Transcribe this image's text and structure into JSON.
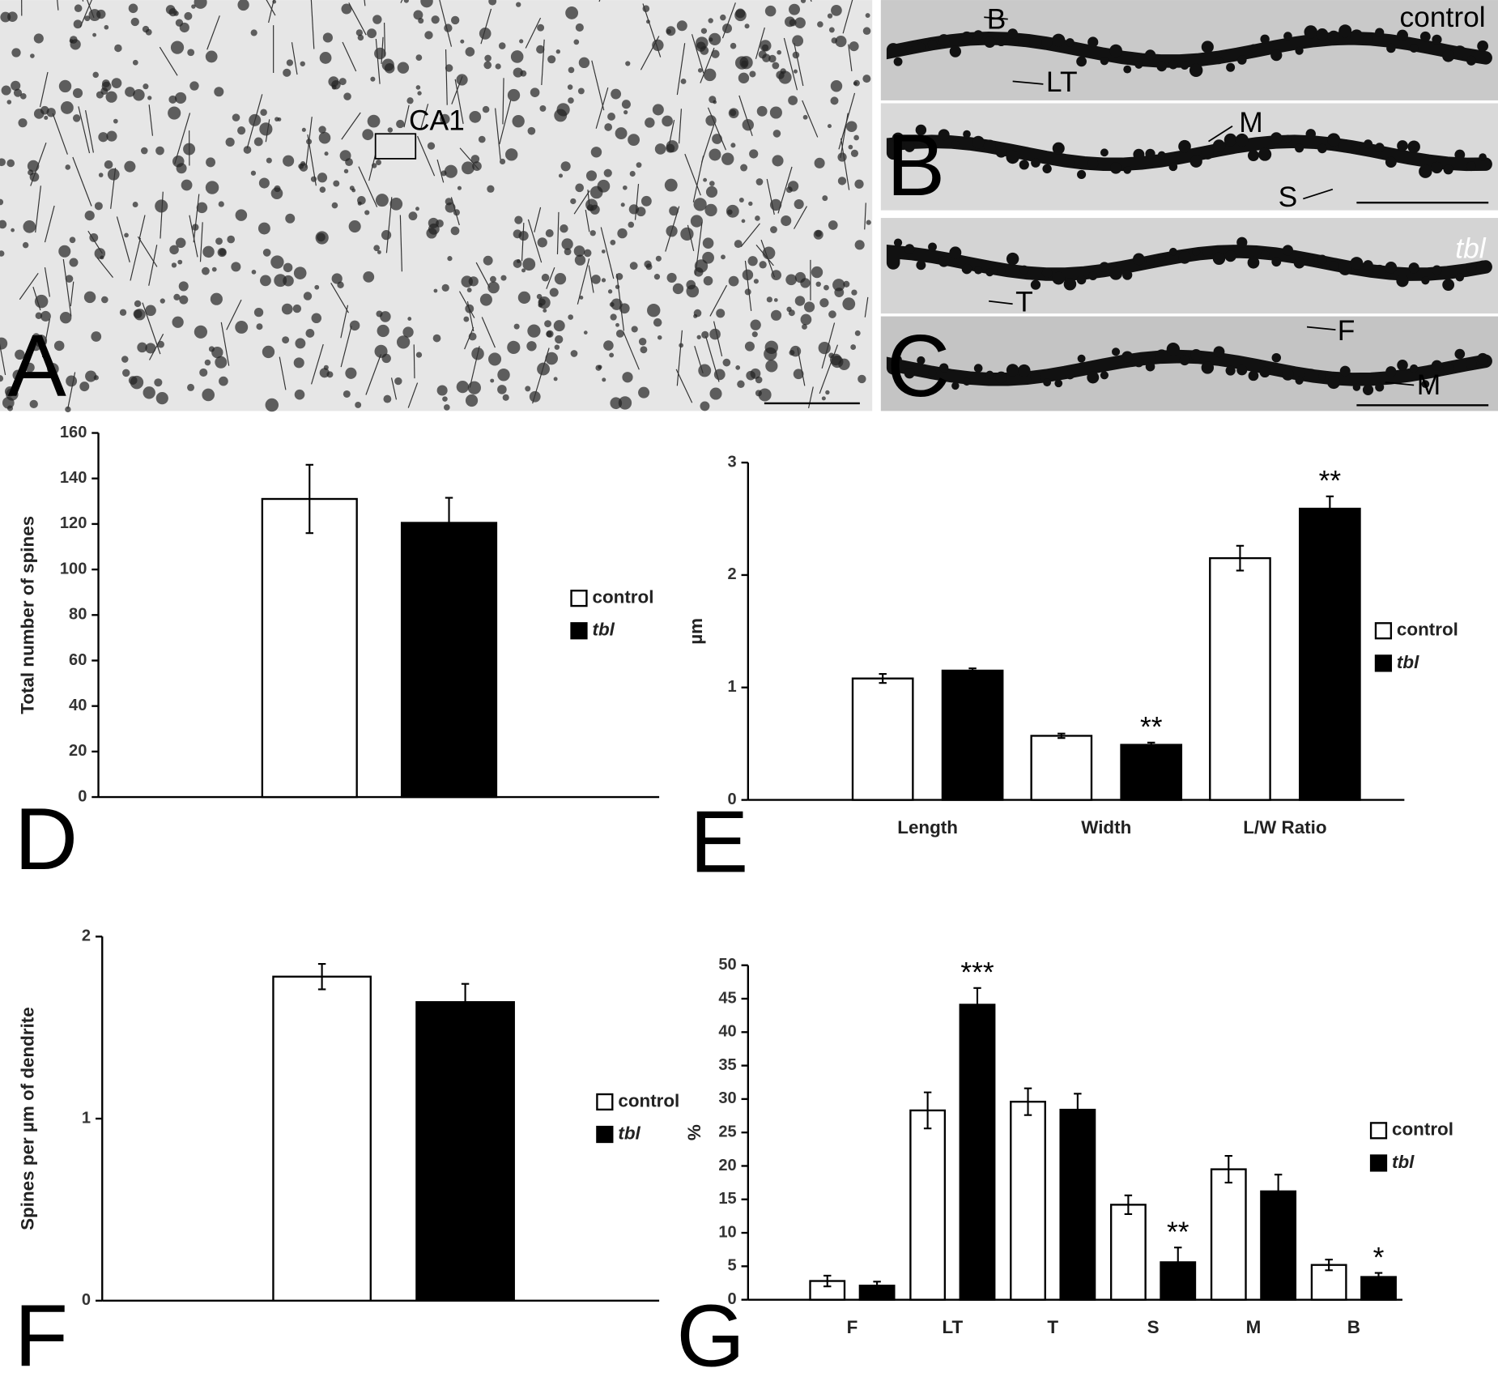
{
  "micrographs": {
    "panel_a": {
      "letter": "A",
      "labels": [
        "CA1"
      ]
    },
    "panel_b": {
      "letter": "B",
      "condition": "control",
      "labels": [
        "B",
        "LT",
        "M",
        "S"
      ]
    },
    "panel_c": {
      "letter": "C",
      "condition": "tbl",
      "labels": [
        "T",
        "F",
        "M"
      ]
    }
  },
  "chart_data": [
    {
      "type": "bar",
      "panel": "D",
      "ylabel": "Total number of spines",
      "ylim": [
        0,
        160
      ],
      "yticks": [
        0,
        20,
        40,
        60,
        80,
        100,
        120,
        140,
        160
      ],
      "series": [
        {
          "name": "control",
          "color": "#ffffff",
          "values": [
            131
          ],
          "errors": [
            15
          ]
        },
        {
          "name": "tbl",
          "color": "#000000",
          "values": [
            120.5
          ],
          "errors": [
            11
          ]
        }
      ]
    },
    {
      "type": "bar",
      "panel": "E",
      "ylabel": "µm",
      "categories": [
        "Length",
        "Width",
        "L/W Ratio"
      ],
      "ylim": [
        0,
        3
      ],
      "yticks": [
        0,
        1,
        2,
        3
      ],
      "series": [
        {
          "name": "control",
          "color": "#ffffff",
          "values": [
            1.08,
            0.57,
            2.15
          ],
          "errors": [
            0.04,
            0.02,
            0.11
          ],
          "significance": [
            null,
            null,
            null
          ]
        },
        {
          "name": "tbl",
          "color": "#000000",
          "values": [
            1.15,
            0.49,
            2.59
          ],
          "errors": [
            0.02,
            0.02,
            0.11
          ],
          "significance": [
            null,
            "**",
            "**"
          ]
        }
      ]
    },
    {
      "type": "bar",
      "panel": "F",
      "ylabel": "Spines per µm of dendrite",
      "ylim": [
        0,
        2
      ],
      "yticks": [
        0,
        1,
        2
      ],
      "series": [
        {
          "name": "control",
          "color": "#ffffff",
          "values": [
            1.78
          ],
          "errors": [
            0.07
          ]
        },
        {
          "name": "tbl",
          "color": "#000000",
          "values": [
            1.64
          ],
          "errors": [
            0.1
          ]
        }
      ]
    },
    {
      "type": "bar",
      "panel": "G",
      "ylabel": "%",
      "categories": [
        "F",
        "LT",
        "T",
        "S",
        "M",
        "B"
      ],
      "ylim": [
        0,
        50
      ],
      "yticks": [
        0,
        5,
        10,
        15,
        20,
        25,
        30,
        35,
        40,
        45,
        50
      ],
      "series": [
        {
          "name": "control",
          "color": "#ffffff",
          "values": [
            2.8,
            28.3,
            29.6,
            14.2,
            19.5,
            5.2
          ],
          "errors": [
            0.8,
            2.7,
            2,
            1.4,
            2,
            0.8
          ],
          "significance": [
            null,
            null,
            null,
            null,
            null,
            null
          ]
        },
        {
          "name": "tbl",
          "color": "#000000",
          "values": [
            2.1,
            44.1,
            28.4,
            5.6,
            16.2,
            3.4
          ],
          "errors": [
            0.6,
            2.5,
            2.4,
            2.2,
            2.5,
            0.6
          ],
          "significance": [
            null,
            "***",
            null,
            "**",
            null,
            "*"
          ]
        }
      ]
    }
  ]
}
